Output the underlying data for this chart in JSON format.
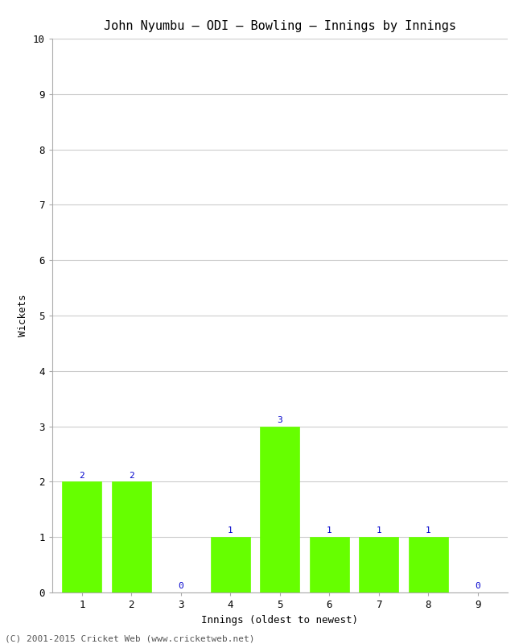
{
  "title": "John Nyumbu – ODI – Bowling – Innings by Innings",
  "xlabel": "Innings (oldest to newest)",
  "ylabel": "Wickets",
  "categories": [
    "1",
    "2",
    "3",
    "4",
    "5",
    "6",
    "7",
    "8",
    "9"
  ],
  "values": [
    2,
    2,
    0,
    1,
    3,
    1,
    1,
    1,
    0
  ],
  "bar_color": "#66ff00",
  "bar_edge_color": "#66ff00",
  "ylim": [
    0,
    10
  ],
  "yticks": [
    0,
    1,
    2,
    3,
    4,
    5,
    6,
    7,
    8,
    9,
    10
  ],
  "label_color": "#0000cc",
  "background_color": "#ffffff",
  "plot_bg_color": "#ffffff",
  "title_fontsize": 11,
  "axis_label_fontsize": 9,
  "tick_fontsize": 9,
  "annotation_fontsize": 8,
  "footer_text": "(C) 2001-2015 Cricket Web (www.cricketweb.net)",
  "footer_fontsize": 8,
  "grid_color": "#cccccc"
}
